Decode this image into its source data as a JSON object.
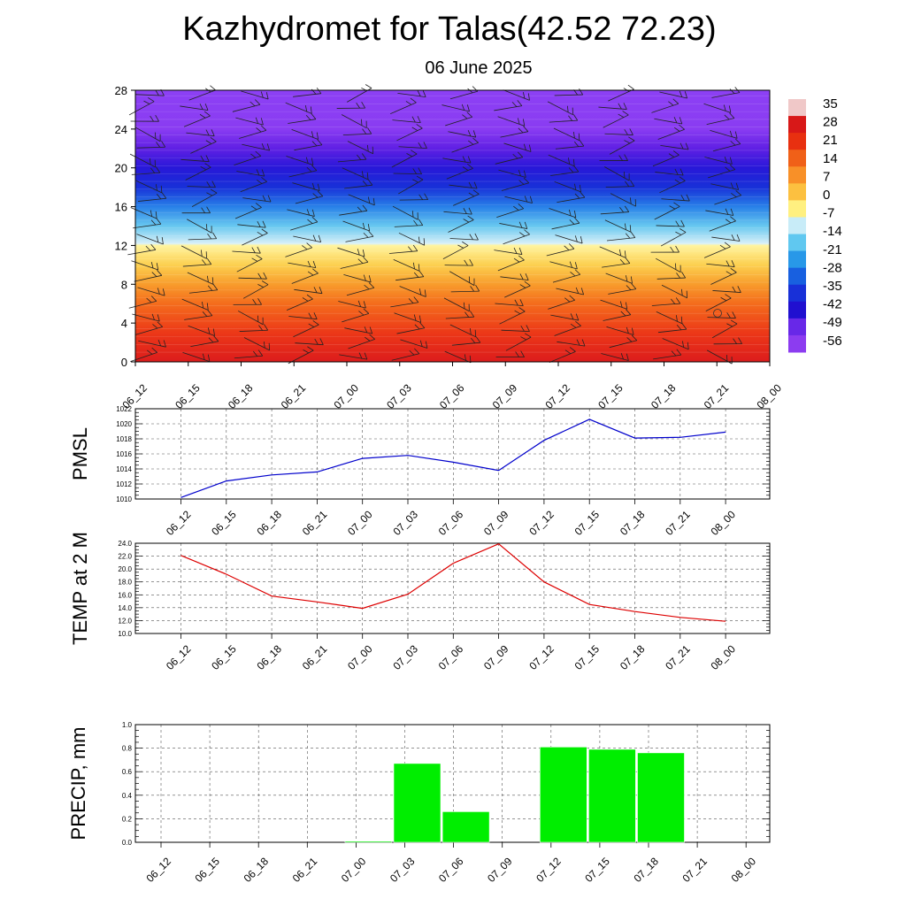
{
  "header": {
    "title": "Kazhydromet for Talas(42.52 72.23)",
    "subtitle": "06 June 2025"
  },
  "chart_data": [
    {
      "type": "heatmap",
      "title": "",
      "xlabel": "",
      "ylabel": "",
      "x_ticks": [
        "06_12",
        "06_15",
        "06_18",
        "06_21",
        "07_00",
        "07_03",
        "07_06",
        "07_09",
        "07_12",
        "07_15",
        "07_18",
        "07_21",
        "08_00"
      ],
      "y_ticks": [
        "0",
        "4",
        "8",
        "12",
        "16",
        "20",
        "24",
        "28"
      ],
      "ylim": [
        0,
        28
      ],
      "colorbar": {
        "labels": [
          "35",
          "28",
          "21",
          "14",
          "7",
          "0",
          "-7",
          "-14",
          "-21",
          "-28",
          "-35",
          "-42",
          "-49",
          "-56"
        ],
        "colors": [
          "#f0c8c8",
          "#d81818",
          "#e83010",
          "#f06018",
          "#f89028",
          "#fcc040",
          "#fff080",
          "#c8ecf8",
          "#60c8f0",
          "#2898e8",
          "#1860e0",
          "#1830d8",
          "#2010d0",
          "#6828e8",
          "#8c3cf0"
        ]
      },
      "field_bands": [
        {
          "height": 0,
          "color": "#dc1c1c"
        },
        {
          "height": 3,
          "color": "#ec3818"
        },
        {
          "height": 6,
          "color": "#f46c1c"
        },
        {
          "height": 8,
          "color": "#f89c2c"
        },
        {
          "height": 10,
          "color": "#fcd050"
        },
        {
          "height": 12,
          "color": "#fff4a0"
        },
        {
          "height": 12.2,
          "color": "#d8f0f8"
        },
        {
          "height": 14,
          "color": "#68c8f0"
        },
        {
          "height": 16,
          "color": "#2880e8"
        },
        {
          "height": 18,
          "color": "#1830d8"
        },
        {
          "height": 20,
          "color": "#2818d8"
        },
        {
          "height": 22,
          "color": "#6020e4"
        },
        {
          "height": 24,
          "color": "#8a3cf2"
        },
        {
          "height": 28,
          "color": "#8c40f4"
        }
      ],
      "wind_barbs": "present"
    },
    {
      "type": "line",
      "ylabel": "PMSL",
      "categories": [
        "06_12",
        "06_15",
        "06_18",
        "06_21",
        "07_00",
        "07_03",
        "07_06",
        "07_09",
        "07_12",
        "07_15",
        "07_18",
        "07_21",
        "08_00"
      ],
      "series": [
        {
          "values": [
            1010.2,
            1012.4,
            1013.2,
            1013.6,
            1015.4,
            1015.8,
            1014.9,
            1013.8,
            1017.8,
            1020.6,
            1018.1,
            1018.2,
            1018.9
          ],
          "color": "#0000cc"
        }
      ],
      "ylim": [
        1010,
        1022
      ],
      "y_ticks": [
        "1010",
        "1012",
        "1014",
        "1016",
        "1018",
        "1020",
        "1022"
      ],
      "grid": true
    },
    {
      "type": "line",
      "ylabel": "TEMP at 2 M",
      "categories": [
        "06_12",
        "06_15",
        "06_18",
        "06_21",
        "07_00",
        "07_03",
        "07_06",
        "07_09",
        "07_12",
        "07_15",
        "07_18",
        "07_21",
        "08_00"
      ],
      "series": [
        {
          "values": [
            22.1,
            19.2,
            15.8,
            14.9,
            13.9,
            16.1,
            20.9,
            23.9,
            18.0,
            14.5,
            13.4,
            12.5,
            11.9
          ],
          "color": "#dd0000"
        }
      ],
      "ylim": [
        10,
        24
      ],
      "y_ticks": [
        "10.0",
        "12.0",
        "14.0",
        "16.0",
        "18.0",
        "20.0",
        "22.0",
        "24.0"
      ],
      "grid": true
    },
    {
      "type": "bar",
      "ylabel": "PRECIP, mm",
      "categories": [
        "06_12",
        "06_15",
        "06_18",
        "06_21",
        "07_00",
        "07_03",
        "07_06",
        "07_09",
        "07_12",
        "07_15",
        "07_18",
        "07_21",
        "08_00"
      ],
      "values": [
        0,
        0,
        0,
        0,
        0.01,
        0.67,
        0.26,
        0,
        0.81,
        0.79,
        0.76,
        0,
        0
      ],
      "ylim": [
        0,
        1
      ],
      "y_ticks": [
        "0.0",
        "0.2",
        "0.4",
        "0.6",
        "0.8",
        "1.0"
      ],
      "bar_color": "#00ee00",
      "grid": true
    }
  ]
}
